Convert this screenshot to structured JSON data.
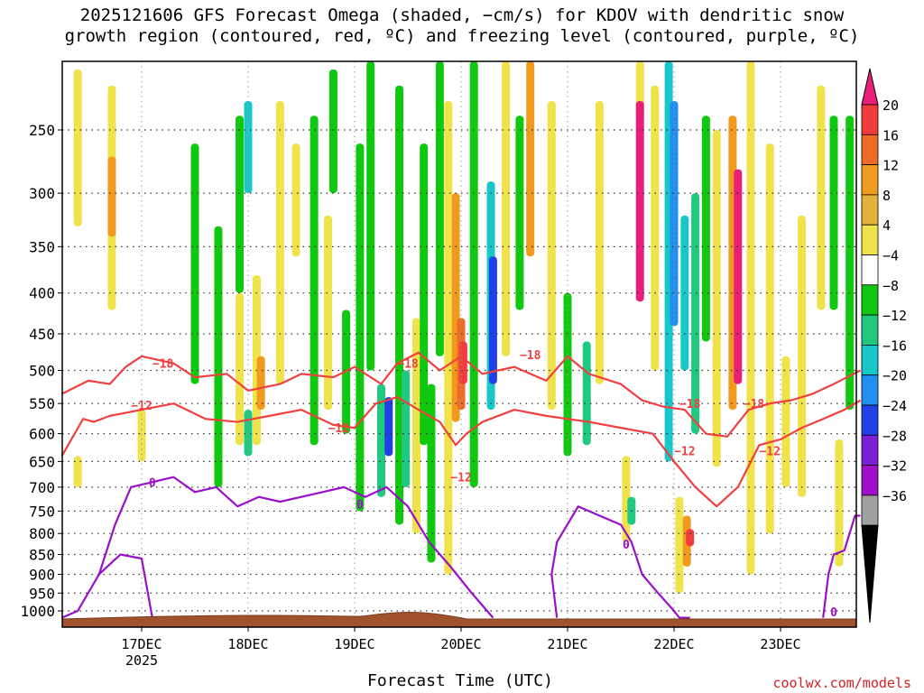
{
  "chart_data": {
    "type": "heatmap",
    "title": "2025121606 GFS Forecast Omega (shaded, −cm/s) for KDOV with dendritic snow\ngrowth region (contoured, red, ºC) and freezing level (contoured, purple, ºC)",
    "xlabel": "Forecast Time (UTC)",
    "ylabel": "",
    "x_ticks": [
      "17DEC",
      "18DEC",
      "19DEC",
      "20DEC",
      "21DEC",
      "22DEC",
      "23DEC"
    ],
    "x_year": "2025",
    "xlim": [
      -0.75,
      6.75
    ],
    "y_ticks": [
      250,
      300,
      350,
      400,
      450,
      500,
      550,
      600,
      650,
      700,
      750,
      800,
      850,
      900,
      950,
      1000
    ],
    "ylim": [
      200,
      1020
    ],
    "colorbar": {
      "labels": [
        "20",
        "16",
        "12",
        "8",
        "4",
        "−4",
        "−8",
        "−12",
        "−16",
        "−20",
        "−24",
        "−28",
        "−32",
        "−36"
      ],
      "colors": [
        "#e8207a",
        "#f03c3c",
        "#f06a28",
        "#f09a20",
        "#e2b43a",
        "#f0e24a",
        "#ffffff",
        "#10c810",
        "#20c880",
        "#18c8c8",
        "#2090f0",
        "#2040e8",
        "#7a20d8",
        "#a010c8",
        "#a0a0a0",
        "#000000"
      ]
    },
    "omega_cells": [
      {
        "x": -0.6,
        "p1": 210,
        "p2": 330,
        "v": 4
      },
      {
        "x": -0.6,
        "p1": 640,
        "p2": 700,
        "v": 4
      },
      {
        "x": -0.28,
        "p1": 220,
        "p2": 420,
        "v": 4
      },
      {
        "x": -0.28,
        "p1": 270,
        "p2": 340,
        "v": 8
      },
      {
        "x": 0.0,
        "p1": 560,
        "p2": 650,
        "v": 4
      },
      {
        "x": 0.5,
        "p1": 260,
        "p2": 520,
        "v": -8
      },
      {
        "x": 0.72,
        "p1": 330,
        "p2": 700,
        "v": -8
      },
      {
        "x": 0.92,
        "p1": 240,
        "p2": 400,
        "v": -8
      },
      {
        "x": 0.92,
        "p1": 400,
        "p2": 620,
        "v": 4
      },
      {
        "x": 1.0,
        "p1": 230,
        "p2": 300,
        "v": -16
      },
      {
        "x": 1.0,
        "p1": 560,
        "p2": 640,
        "v": -12
      },
      {
        "x": 1.08,
        "p1": 380,
        "p2": 620,
        "v": 4
      },
      {
        "x": 1.12,
        "p1": 480,
        "p2": 560,
        "v": 8
      },
      {
        "x": 1.3,
        "p1": 230,
        "p2": 520,
        "v": 4
      },
      {
        "x": 1.45,
        "p1": 260,
        "p2": 360,
        "v": 4
      },
      {
        "x": 1.62,
        "p1": 240,
        "p2": 620,
        "v": -8
      },
      {
        "x": 1.75,
        "p1": 320,
        "p2": 560,
        "v": 4
      },
      {
        "x": 1.8,
        "p1": 210,
        "p2": 300,
        "v": -8
      },
      {
        "x": 1.92,
        "p1": 420,
        "p2": 600,
        "v": -8
      },
      {
        "x": 2.05,
        "p1": 260,
        "p2": 750,
        "v": -8
      },
      {
        "x": 2.15,
        "p1": 200,
        "p2": 500,
        "v": -8
      },
      {
        "x": 2.25,
        "p1": 520,
        "p2": 720,
        "v": -12
      },
      {
        "x": 2.32,
        "p1": 540,
        "p2": 640,
        "v": -24
      },
      {
        "x": 2.42,
        "p1": 220,
        "p2": 780,
        "v": -8
      },
      {
        "x": 2.48,
        "p1": 500,
        "p2": 700,
        "v": -12
      },
      {
        "x": 2.58,
        "p1": 430,
        "p2": 800,
        "v": 4
      },
      {
        "x": 2.65,
        "p1": 260,
        "p2": 620,
        "v": -8
      },
      {
        "x": 2.72,
        "p1": 520,
        "p2": 870,
        "v": -8
      },
      {
        "x": 2.8,
        "p1": 200,
        "p2": 480,
        "v": -8
      },
      {
        "x": 2.88,
        "p1": 230,
        "p2": 900,
        "v": 4
      },
      {
        "x": 2.95,
        "p1": 300,
        "p2": 580,
        "v": 8
      },
      {
        "x": 3.0,
        "p1": 430,
        "p2": 560,
        "v": 12
      },
      {
        "x": 3.02,
        "p1": 460,
        "p2": 520,
        "v": 16
      },
      {
        "x": 3.12,
        "p1": 200,
        "p2": 700,
        "v": -8
      },
      {
        "x": 3.28,
        "p1": 290,
        "p2": 560,
        "v": -16
      },
      {
        "x": 3.3,
        "p1": 360,
        "p2": 520,
        "v": -24
      },
      {
        "x": 3.42,
        "p1": 200,
        "p2": 480,
        "v": 4
      },
      {
        "x": 3.55,
        "p1": 240,
        "p2": 420,
        "v": -8
      },
      {
        "x": 3.65,
        "p1": 200,
        "p2": 360,
        "v": 8
      },
      {
        "x": 3.85,
        "p1": 230,
        "p2": 560,
        "v": 4
      },
      {
        "x": 4.0,
        "p1": 400,
        "p2": 640,
        "v": -8
      },
      {
        "x": 4.18,
        "p1": 460,
        "p2": 620,
        "v": -12
      },
      {
        "x": 4.3,
        "p1": 230,
        "p2": 520,
        "v": 4
      },
      {
        "x": 4.55,
        "p1": 640,
        "p2": 820,
        "v": 4
      },
      {
        "x": 4.6,
        "p1": 720,
        "p2": 780,
        "v": -12
      },
      {
        "x": 4.68,
        "p1": 200,
        "p2": 240,
        "v": 4
      },
      {
        "x": 4.68,
        "p1": 230,
        "p2": 410,
        "v": 20
      },
      {
        "x": 4.82,
        "p1": 220,
        "p2": 500,
        "v": 4
      },
      {
        "x": 4.95,
        "p1": 200,
        "p2": 650,
        "v": -16
      },
      {
        "x": 5.0,
        "p1": 230,
        "p2": 440,
        "v": -20
      },
      {
        "x": 5.1,
        "p1": 320,
        "p2": 500,
        "v": -16
      },
      {
        "x": 5.2,
        "p1": 300,
        "p2": 600,
        "v": -12
      },
      {
        "x": 5.3,
        "p1": 240,
        "p2": 460,
        "v": -8
      },
      {
        "x": 5.05,
        "p1": 720,
        "p2": 950,
        "v": 4
      },
      {
        "x": 5.12,
        "p1": 760,
        "p2": 880,
        "v": 8
      },
      {
        "x": 5.15,
        "p1": 790,
        "p2": 830,
        "v": 16
      },
      {
        "x": 5.4,
        "p1": 250,
        "p2": 660,
        "v": 4
      },
      {
        "x": 5.55,
        "p1": 240,
        "p2": 560,
        "v": 8
      },
      {
        "x": 5.6,
        "p1": 280,
        "p2": 520,
        "v": 20
      },
      {
        "x": 5.72,
        "p1": 200,
        "p2": 900,
        "v": 4
      },
      {
        "x": 5.9,
        "p1": 260,
        "p2": 800,
        "v": 4
      },
      {
        "x": 6.05,
        "p1": 480,
        "p2": 700,
        "v": 4
      },
      {
        "x": 6.2,
        "p1": 320,
        "p2": 720,
        "v": 4
      },
      {
        "x": 6.38,
        "p1": 220,
        "p2": 420,
        "v": 4
      },
      {
        "x": 6.5,
        "p1": 240,
        "p2": 420,
        "v": -8
      },
      {
        "x": 6.65,
        "p1": 240,
        "p2": 560,
        "v": -8
      },
      {
        "x": 6.55,
        "p1": 610,
        "p2": 880,
        "v": 4
      }
    ],
    "contour_red_upper": {
      "label": "−18",
      "x": [
        -0.75,
        -0.5,
        -0.3,
        -0.15,
        0.0,
        0.3,
        0.5,
        0.8,
        1.0,
        1.3,
        1.5,
        1.8,
        2.0,
        2.25,
        2.4,
        2.6,
        2.8,
        3.0,
        3.2,
        3.5,
        3.8,
        4.0,
        4.2,
        4.5,
        4.7,
        4.9,
        5.1,
        5.3,
        5.5,
        5.7,
        5.9,
        6.1,
        6.3,
        6.5,
        6.75
      ],
      "p": [
        535,
        515,
        520,
        495,
        480,
        490,
        510,
        505,
        530,
        520,
        505,
        510,
        495,
        520,
        490,
        475,
        500,
        480,
        505,
        495,
        515,
        480,
        505,
        520,
        545,
        555,
        560,
        600,
        605,
        560,
        550,
        545,
        535,
        520,
        500
      ]
    },
    "contour_red_lower": {
      "label": "−12",
      "x": [
        -0.75,
        -0.55,
        -0.45,
        -0.3,
        0.0,
        0.3,
        0.6,
        0.9,
        1.2,
        1.5,
        1.8,
        2.0,
        2.2,
        2.4,
        2.6,
        2.8,
        2.95,
        3.05,
        3.2,
        3.5,
        3.8,
        4.0,
        4.2,
        4.5,
        4.8,
        5.0,
        5.2,
        5.4,
        5.6,
        5.8,
        6.0,
        6.2,
        6.4,
        6.6,
        6.75
      ],
      "p": [
        640,
        575,
        580,
        570,
        560,
        550,
        575,
        580,
        570,
        560,
        585,
        590,
        550,
        540,
        560,
        580,
        620,
        600,
        580,
        560,
        570,
        575,
        580,
        590,
        600,
        650,
        700,
        740,
        700,
        620,
        610,
        590,
        575,
        560,
        545
      ]
    },
    "contour_purple": {
      "label": "0",
      "segments": [
        {
          "x": [
            -0.4,
            -0.25,
            -0.1,
            0.1,
            0.3,
            0.5,
            0.7,
            0.9,
            1.1,
            1.3,
            1.5,
            1.7,
            1.9,
            2.1,
            2.3,
            2.5,
            2.7,
            2.9,
            3.1,
            3.3
          ],
          "p": [
            900,
            780,
            700,
            690,
            680,
            710,
            700,
            740,
            720,
            730,
            720,
            710,
            700,
            720,
            700,
            740,
            820,
            880,
            950,
            1020
          ]
        },
        {
          "x": [
            -0.75,
            -0.6,
            -0.4,
            -0.2,
            0.0,
            0.1,
            0.2
          ],
          "p": [
            1020,
            1000,
            900,
            850,
            860,
            1020,
            1020
          ]
        },
        {
          "x": [
            3.9,
            3.85,
            3.9,
            4.1,
            4.3,
            4.5,
            4.6,
            4.7,
            4.85,
            5.0,
            5.05,
            5.15
          ],
          "p": [
            1020,
            900,
            820,
            740,
            760,
            780,
            820,
            900,
            950,
            1000,
            1020,
            1020
          ]
        },
        {
          "x": [
            6.4,
            6.45,
            6.5,
            6.6,
            6.7,
            6.75
          ],
          "p": [
            1020,
            900,
            850,
            840,
            760,
            760
          ]
        }
      ]
    }
  }
}
